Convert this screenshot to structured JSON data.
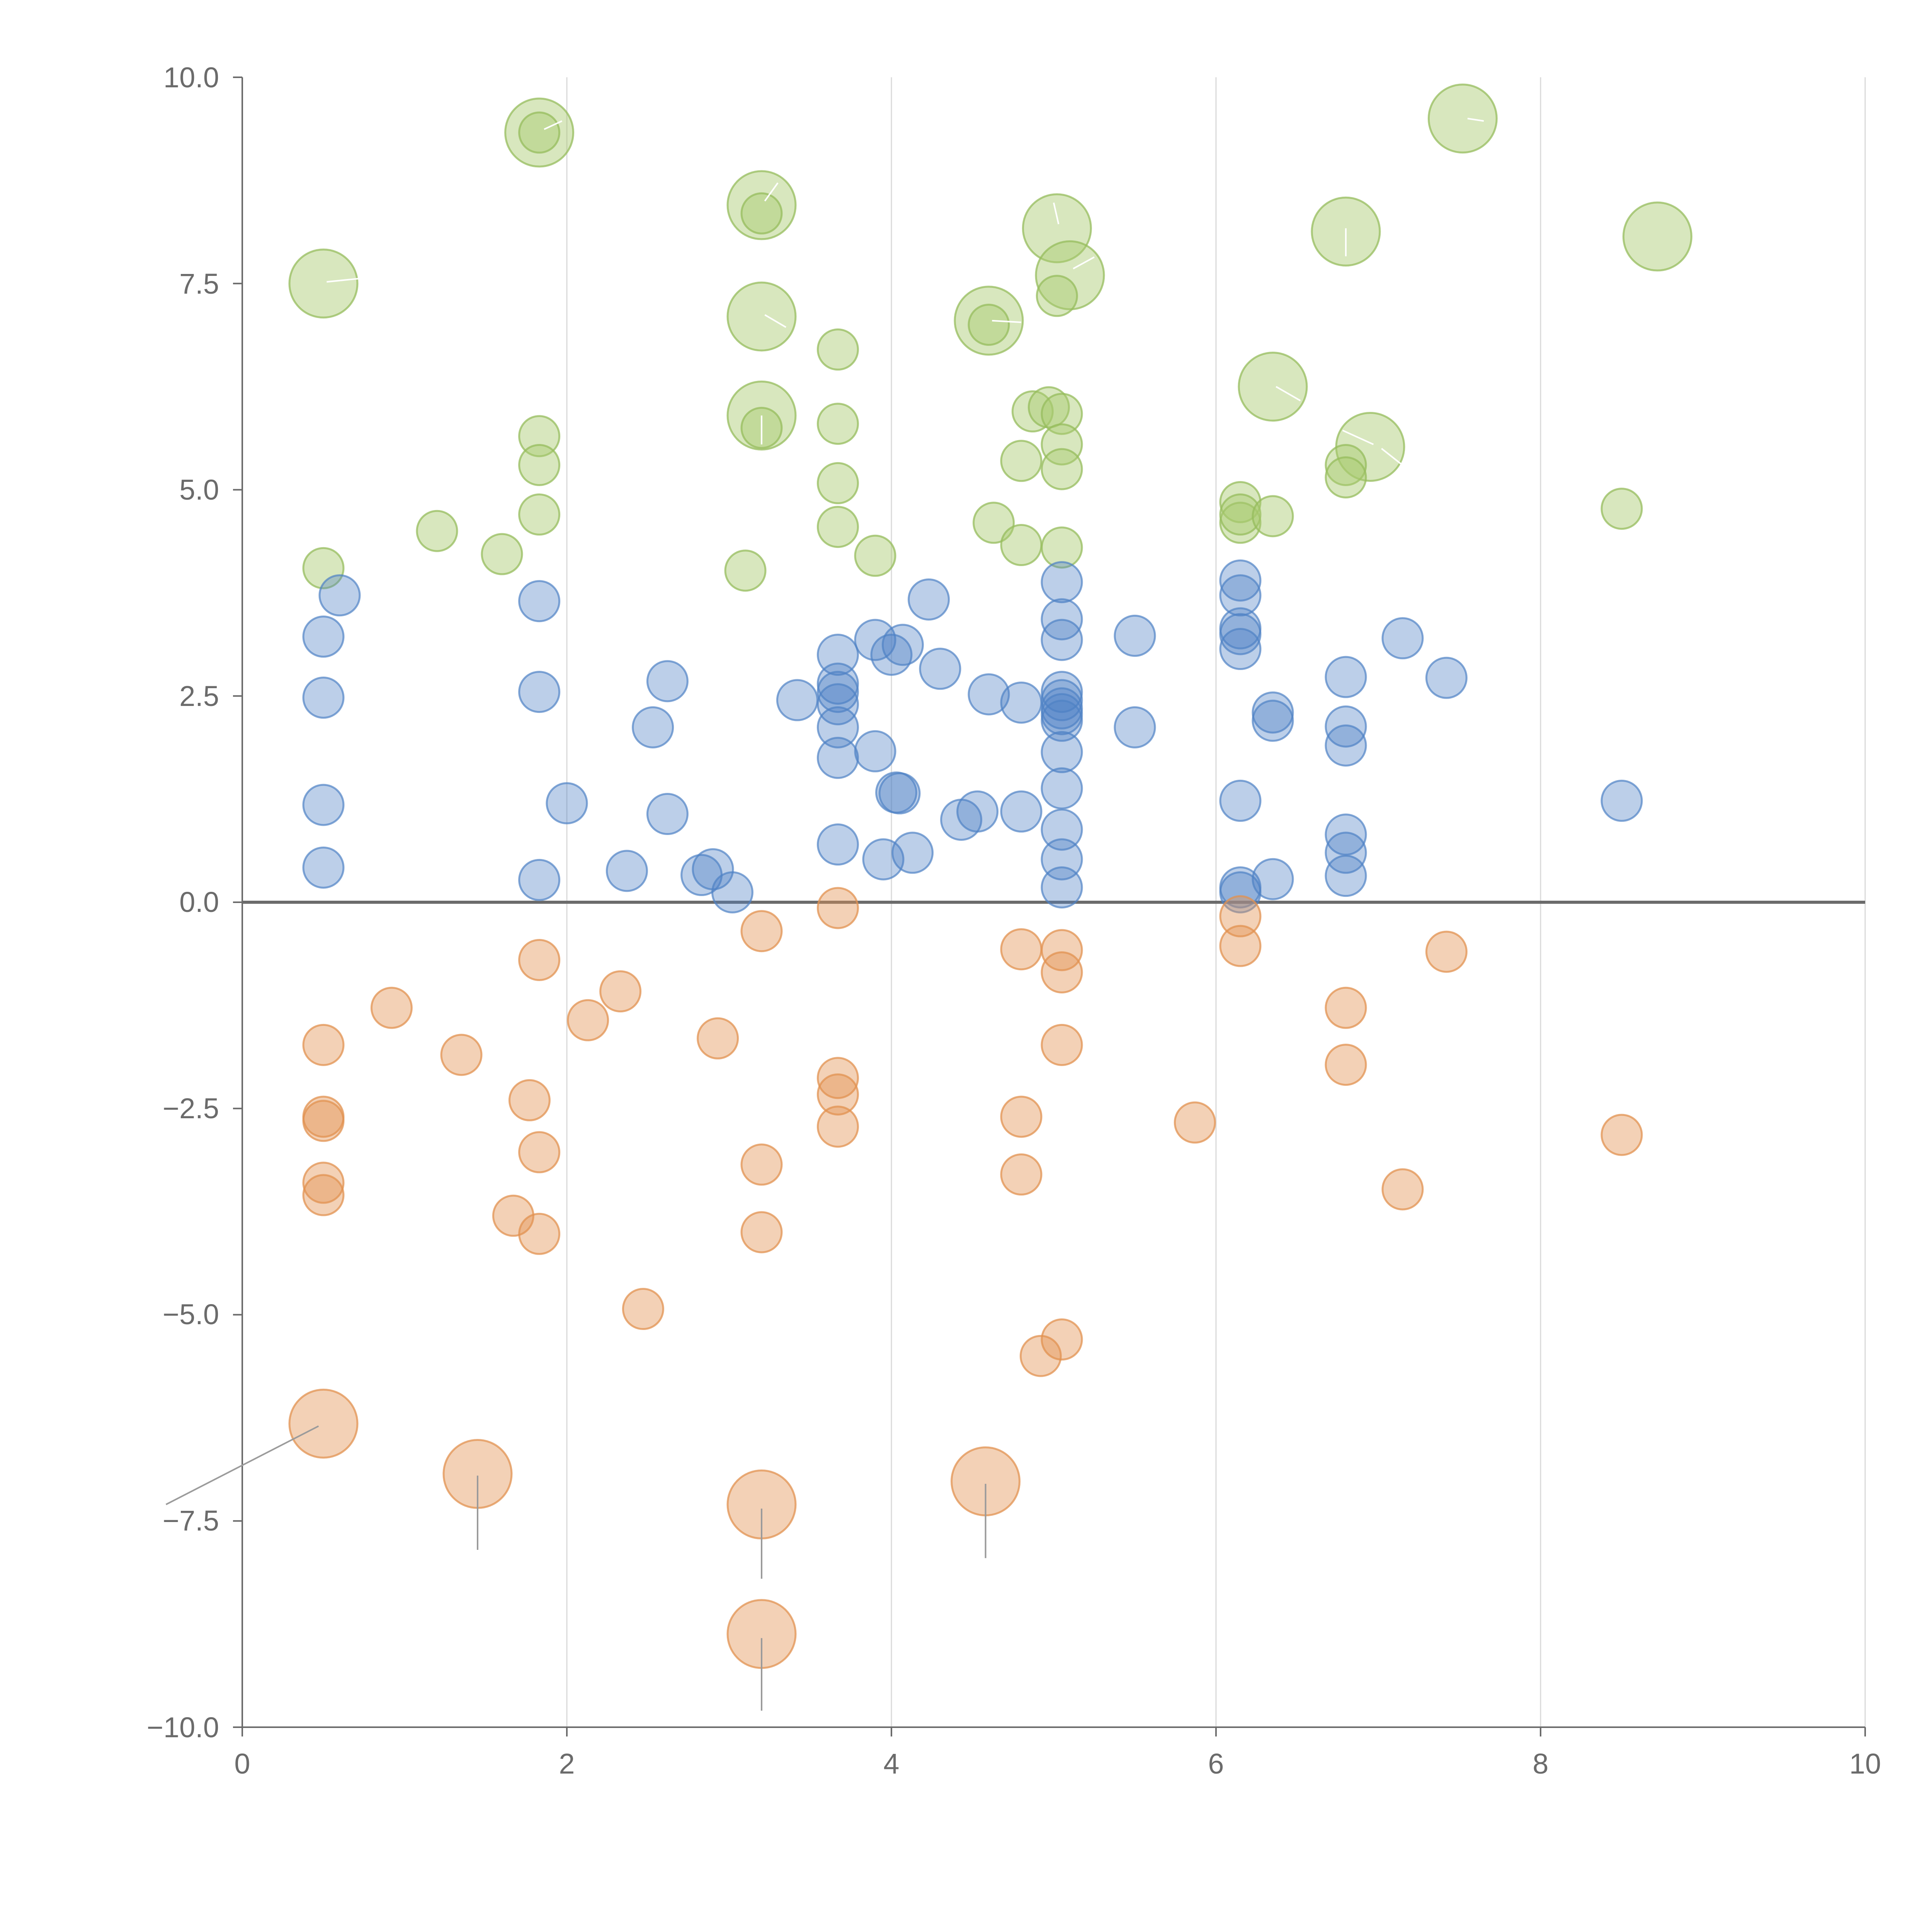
{
  "chart_data": {
    "type": "scatter",
    "title": "",
    "xlabel": "",
    "ylabel": "",
    "xlim": [
      0,
      10
    ],
    "ylim": [
      -10,
      10
    ],
    "x_ticks": [
      "0",
      "2",
      "4",
      "6",
      "8",
      "10"
    ],
    "y_ticks": [
      "10.0",
      "7.5",
      "5.0",
      "2.5",
      "0.0",
      "−2.5",
      "−5.0",
      "−7.5",
      "−10.0"
    ],
    "grid": "vertical",
    "zero_line": true,
    "colors": {
      "green": "#a8ca6e",
      "blue": "#4f81c4",
      "orange": "#e29250"
    },
    "series": [
      {
        "name": "green",
        "points": [
          [
            0.5,
            7.5,
            2
          ],
          [
            1.83,
            9.33,
            2
          ],
          [
            1.83,
            9.33,
            1
          ],
          [
            3.2,
            8.45,
            2
          ],
          [
            3.2,
            8.35,
            1
          ],
          [
            5.02,
            8.17,
            2
          ],
          [
            5.1,
            7.6,
            2
          ],
          [
            5.02,
            7.35,
            1
          ],
          [
            3.2,
            7.1,
            2
          ],
          [
            4.6,
            7.05,
            2
          ],
          [
            4.6,
            7.0,
            1
          ],
          [
            3.67,
            6.7,
            1
          ],
          [
            6.8,
            8.13,
            2
          ],
          [
            8.72,
            8.07,
            2
          ],
          [
            7.52,
            9.5,
            2
          ],
          [
            6.35,
            6.25,
            2
          ],
          [
            6.95,
            5.52,
            2
          ],
          [
            3.2,
            5.9,
            2
          ],
          [
            3.2,
            5.75,
            1
          ],
          [
            3.67,
            5.8,
            1
          ],
          [
            1.83,
            5.65,
            1
          ],
          [
            1.83,
            5.3,
            1
          ],
          [
            1.83,
            4.7,
            1
          ],
          [
            3.67,
            5.08,
            1
          ],
          [
            4.87,
            5.95,
            1
          ],
          [
            4.97,
            6.0,
            1
          ],
          [
            5.05,
            5.92,
            1
          ],
          [
            5.05,
            5.55,
            1
          ],
          [
            5.05,
            5.25,
            1
          ],
          [
            4.8,
            5.35,
            1
          ],
          [
            3.67,
            4.55,
            1
          ],
          [
            4.63,
            4.6,
            1
          ],
          [
            4.8,
            4.33,
            1
          ],
          [
            5.05,
            4.3,
            1
          ],
          [
            0.5,
            4.05,
            1
          ],
          [
            1.2,
            4.5,
            1
          ],
          [
            1.6,
            4.22,
            1
          ],
          [
            3.1,
            4.02,
            1
          ],
          [
            3.9,
            4.2,
            1
          ],
          [
            6.15,
            4.85,
            1
          ],
          [
            6.15,
            4.6,
            1
          ],
          [
            6.15,
            4.7,
            1
          ],
          [
            6.35,
            4.68,
            1
          ],
          [
            6.8,
            5.3,
            1
          ],
          [
            6.8,
            5.15,
            1
          ],
          [
            8.5,
            4.77,
            1
          ]
        ]
      },
      {
        "name": "blue",
        "points": [
          [
            0.6,
            3.72,
            1
          ],
          [
            0.5,
            3.22,
            1
          ],
          [
            0.5,
            2.48,
            1
          ],
          [
            0.5,
            1.18,
            1
          ],
          [
            0.5,
            0.42,
            1
          ],
          [
            1.83,
            3.65,
            1
          ],
          [
            1.83,
            2.55,
            1
          ],
          [
            1.83,
            0.27,
            1
          ],
          [
            2.0,
            1.2,
            1
          ],
          [
            2.37,
            0.38,
            1
          ],
          [
            2.53,
            2.12,
            1
          ],
          [
            2.62,
            2.68,
            1
          ],
          [
            2.62,
            1.07,
            1
          ],
          [
            2.83,
            0.33,
            1
          ],
          [
            2.9,
            0.4,
            1
          ],
          [
            3.02,
            0.12,
            1
          ],
          [
            3.42,
            2.45,
            1
          ],
          [
            3.67,
            3.0,
            1
          ],
          [
            3.67,
            2.65,
            1
          ],
          [
            3.67,
            2.55,
            1
          ],
          [
            3.67,
            2.4,
            1
          ],
          [
            3.67,
            2.12,
            1
          ],
          [
            3.67,
            1.75,
            1
          ],
          [
            3.67,
            0.7,
            1
          ],
          [
            3.9,
            3.18,
            1
          ],
          [
            3.9,
            1.83,
            1
          ],
          [
            3.95,
            0.52,
            1
          ],
          [
            4.0,
            3.0,
            1
          ],
          [
            4.07,
            3.12,
            1
          ],
          [
            4.03,
            1.33,
            1
          ],
          [
            4.05,
            1.32,
            1
          ],
          [
            4.13,
            0.6,
            1
          ],
          [
            4.23,
            3.67,
            1
          ],
          [
            4.3,
            2.83,
            1
          ],
          [
            4.43,
            1.0,
            1
          ],
          [
            4.53,
            1.1,
            1
          ],
          [
            4.6,
            2.52,
            1
          ],
          [
            4.8,
            2.42,
            1
          ],
          [
            4.8,
            1.1,
            1
          ],
          [
            5.05,
            3.88,
            1
          ],
          [
            5.05,
            3.43,
            1
          ],
          [
            5.05,
            3.18,
            1
          ],
          [
            5.05,
            2.55,
            1
          ],
          [
            5.05,
            2.45,
            1
          ],
          [
            5.05,
            2.35,
            1
          ],
          [
            5.05,
            2.28,
            1
          ],
          [
            5.05,
            2.2,
            1
          ],
          [
            5.05,
            1.82,
            1
          ],
          [
            5.05,
            1.38,
            1
          ],
          [
            5.05,
            0.88,
            1
          ],
          [
            5.05,
            0.52,
            1
          ],
          [
            5.05,
            0.18,
            1
          ],
          [
            5.5,
            3.23,
            1
          ],
          [
            5.5,
            2.12,
            1
          ],
          [
            6.15,
            3.9,
            1
          ],
          [
            6.15,
            3.72,
            1
          ],
          [
            6.15,
            3.32,
            1
          ],
          [
            6.15,
            3.25,
            1
          ],
          [
            6.15,
            3.07,
            1
          ],
          [
            6.15,
            1.23,
            1
          ],
          [
            6.15,
            0.18,
            1
          ],
          [
            6.15,
            0.12,
            1
          ],
          [
            6.35,
            2.3,
            1
          ],
          [
            6.35,
            2.2,
            1
          ],
          [
            6.35,
            0.28,
            1
          ],
          [
            6.8,
            2.73,
            1
          ],
          [
            6.8,
            2.13,
            1
          ],
          [
            6.8,
            1.9,
            1
          ],
          [
            6.8,
            0.82,
            1
          ],
          [
            6.8,
            0.6,
            1
          ],
          [
            6.8,
            0.32,
            1
          ],
          [
            7.15,
            3.2,
            1
          ],
          [
            7.42,
            2.72,
            1
          ],
          [
            8.5,
            1.23,
            1
          ]
        ]
      },
      {
        "name": "orange",
        "points": [
          [
            0.5,
            -1.73,
            1
          ],
          [
            0.5,
            -2.6,
            1
          ],
          [
            0.5,
            -2.65,
            1
          ],
          [
            0.5,
            -3.4,
            1
          ],
          [
            0.5,
            -3.55,
            1
          ],
          [
            0.92,
            -1.28,
            1
          ],
          [
            1.35,
            -1.85,
            1
          ],
          [
            1.67,
            -3.8,
            1
          ],
          [
            1.77,
            -2.4,
            1
          ],
          [
            1.83,
            -0.7,
            1
          ],
          [
            1.83,
            -3.03,
            1
          ],
          [
            1.83,
            -4.02,
            1
          ],
          [
            2.13,
            -1.43,
            1
          ],
          [
            2.33,
            -1.08,
            1
          ],
          [
            2.47,
            -4.93,
            1
          ],
          [
            2.93,
            -1.65,
            1
          ],
          [
            3.2,
            -0.35,
            1
          ],
          [
            3.2,
            -3.18,
            1
          ],
          [
            3.2,
            -4.0,
            1
          ],
          [
            3.67,
            -0.07,
            1
          ],
          [
            3.67,
            -2.13,
            1
          ],
          [
            3.67,
            -2.33,
            1
          ],
          [
            3.67,
            -2.72,
            1
          ],
          [
            4.8,
            -0.57,
            1
          ],
          [
            4.8,
            -2.6,
            1
          ],
          [
            4.8,
            -3.3,
            1
          ],
          [
            4.92,
            -5.5,
            1
          ],
          [
            5.05,
            -0.58,
            1
          ],
          [
            5.05,
            -0.85,
            1
          ],
          [
            5.05,
            -1.73,
            1
          ],
          [
            5.05,
            -5.3,
            1
          ],
          [
            5.87,
            -2.67,
            1
          ],
          [
            6.15,
            -0.17,
            1
          ],
          [
            6.15,
            -0.53,
            1
          ],
          [
            6.8,
            -1.28,
            1
          ],
          [
            6.8,
            -1.97,
            1
          ],
          [
            7.15,
            -3.48,
            1
          ],
          [
            7.42,
            -0.6,
            1
          ],
          [
            8.5,
            -2.82,
            1
          ],
          [
            0.5,
            -6.32,
            2
          ],
          [
            1.45,
            -6.93,
            2
          ],
          [
            3.2,
            -7.3,
            2
          ],
          [
            4.58,
            -7.02,
            2
          ],
          [
            3.2,
            -8.87,
            2
          ]
        ]
      }
    ],
    "leader_lines": [
      {
        "tone": "light",
        "from": [
          0.52,
          7.52
        ],
        "to": [
          0.72,
          7.56
        ]
      },
      {
        "tone": "light",
        "from": [
          1.86,
          9.37
        ],
        "to": [
          1.97,
          9.47
        ]
      },
      {
        "tone": "light",
        "from": [
          3.22,
          8.5
        ],
        "to": [
          3.3,
          8.72
        ]
      },
      {
        "tone": "light",
        "from": [
          5.03,
          8.22
        ],
        "to": [
          5.0,
          8.48
        ]
      },
      {
        "tone": "light",
        "from": [
          5.12,
          7.68
        ],
        "to": [
          5.25,
          7.82
        ]
      },
      {
        "tone": "light",
        "from": [
          3.22,
          7.12
        ],
        "to": [
          3.35,
          6.97
        ]
      },
      {
        "tone": "light",
        "from": [
          4.62,
          7.05
        ],
        "to": [
          4.8,
          7.03
        ]
      },
      {
        "tone": "light",
        "from": [
          6.8,
          8.17
        ],
        "to": [
          6.8,
          7.83
        ]
      },
      {
        "tone": "light",
        "from": [
          6.37,
          6.25
        ],
        "to": [
          6.52,
          6.08
        ]
      },
      {
        "tone": "light",
        "from": [
          6.97,
          5.55
        ],
        "to": [
          6.78,
          5.72
        ]
      },
      {
        "tone": "light",
        "from": [
          7.02,
          5.5
        ],
        "to": [
          7.2,
          5.22
        ]
      },
      {
        "tone": "light",
        "from": [
          3.2,
          5.9
        ],
        "to": [
          3.2,
          5.55
        ]
      },
      {
        "tone": "light",
        "from": [
          7.55,
          9.5
        ],
        "to": [
          7.65,
          9.47
        ]
      },
      {
        "tone": "dark",
        "from": [
          0.47,
          -6.35
        ],
        "to": [
          -0.47,
          -7.3
        ]
      },
      {
        "tone": "dark",
        "from": [
          1.45,
          -6.95
        ],
        "to": [
          1.45,
          -7.85
        ]
      },
      {
        "tone": "dark",
        "from": [
          3.2,
          -7.35
        ],
        "to": [
          3.2,
          -8.2
        ]
      },
      {
        "tone": "dark",
        "from": [
          4.58,
          -7.05
        ],
        "to": [
          4.58,
          -7.95
        ]
      },
      {
        "tone": "dark",
        "from": [
          3.2,
          -8.92
        ],
        "to": [
          3.2,
          -9.8
        ]
      }
    ]
  }
}
